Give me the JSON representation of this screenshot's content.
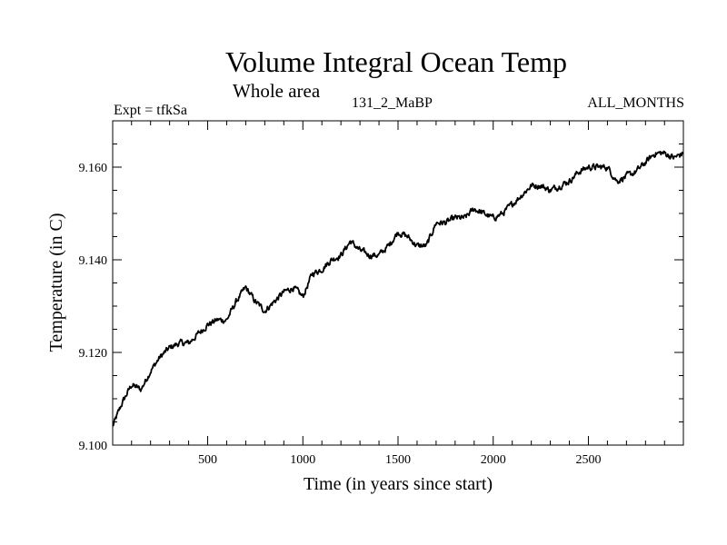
{
  "chart_data": {
    "type": "line",
    "title": "Volume Integral Ocean Temp",
    "subtitle": "Whole area",
    "experiment": "Expt = tfkSa",
    "run": "131_2_MaBP",
    "months": "ALL_MONTHS",
    "xlabel": "Time (in years since start)",
    "ylabel": "Temperature (in C)",
    "xlim": [
      1,
      2999
    ],
    "ylim": [
      9.1,
      9.17
    ],
    "xticks": [
      500,
      1000,
      1500,
      2000,
      2500
    ],
    "yticks": [
      9.1,
      9.12,
      9.14,
      9.16
    ],
    "ytick_labels": [
      "9.100",
      "9.120",
      "9.140",
      "9.160"
    ],
    "series": [
      {
        "name": "Volume integral ocean temperature",
        "color": "#000000",
        "x": [
          1,
          50,
          100,
          150,
          200,
          250,
          300,
          350,
          400,
          450,
          500,
          550,
          600,
          650,
          700,
          750,
          800,
          850,
          900,
          950,
          1000,
          1050,
          1100,
          1150,
          1200,
          1250,
          1300,
          1350,
          1400,
          1450,
          1500,
          1550,
          1600,
          1650,
          1700,
          1750,
          1800,
          1850,
          1900,
          1950,
          2000,
          2050,
          2100,
          2150,
          2200,
          2250,
          2300,
          2350,
          2400,
          2450,
          2500,
          2550,
          2600,
          2650,
          2700,
          2750,
          2800,
          2850,
          2900,
          2950,
          2999
        ],
        "y": [
          9.104,
          9.109,
          9.113,
          9.112,
          9.116,
          9.119,
          9.121,
          9.122,
          9.122,
          9.124,
          9.126,
          9.127,
          9.127,
          9.131,
          9.134,
          9.131,
          9.129,
          9.131,
          9.133,
          9.134,
          9.132,
          9.137,
          9.138,
          9.14,
          9.141,
          9.144,
          9.142,
          9.141,
          9.141,
          9.143,
          9.146,
          9.145,
          9.143,
          9.143,
          9.148,
          9.148,
          9.149,
          9.149,
          9.151,
          9.15,
          9.149,
          9.15,
          9.152,
          9.154,
          9.156,
          9.156,
          9.155,
          9.156,
          9.157,
          9.159,
          9.16,
          9.16,
          9.16,
          9.157,
          9.158,
          9.159,
          9.161,
          9.163,
          9.163,
          9.162,
          9.163
        ]
      }
    ]
  }
}
